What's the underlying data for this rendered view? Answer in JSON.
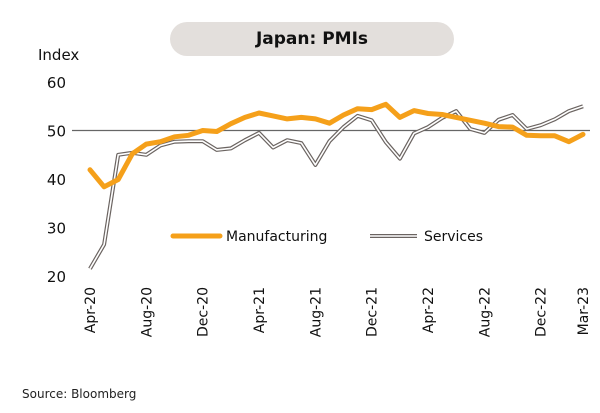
{
  "chart_data": {
    "type": "line",
    "title": "Japan: PMIs",
    "ylabel": "Index",
    "ylim": [
      20,
      60
    ],
    "yticks": [
      20,
      30,
      40,
      50,
      60
    ],
    "reference_line": 50,
    "x_tick_labels": [
      "Apr-20",
      "Aug-20",
      "Dec-20",
      "Apr-21",
      "Aug-21",
      "Dec-21",
      "Apr-22",
      "Aug-22",
      "Dec-22",
      "Mar-23"
    ],
    "x_tick_index": [
      0,
      4,
      8,
      12,
      16,
      20,
      24,
      28,
      32,
      35
    ],
    "series": [
      {
        "name": "Manufacturing",
        "color": "#f5a01a",
        "values": [
          41.9,
          38.4,
          39.9,
          45.2,
          47.2,
          47.7,
          48.7,
          49.0,
          50.0,
          49.8,
          51.4,
          52.7,
          53.6,
          53.0,
          52.4,
          52.7,
          52.4,
          51.5,
          53.2,
          54.5,
          54.3,
          55.4,
          52.7,
          54.1,
          53.5,
          53.3,
          52.7,
          52.1,
          51.5,
          50.8,
          50.7,
          49.0,
          48.9,
          48.9,
          47.7,
          49.2
        ]
      },
      {
        "name": "Services",
        "color": "#6b6461",
        "values": [
          21.5,
          26.5,
          45.0,
          45.4,
          45.0,
          46.9,
          47.7,
          47.8,
          47.8,
          46.0,
          46.3,
          48.0,
          49.5,
          46.5,
          48.0,
          47.4,
          42.9,
          47.8,
          50.7,
          53.0,
          52.1,
          47.6,
          44.2,
          49.4,
          50.7,
          52.6,
          54.0,
          50.3,
          49.5,
          52.2,
          53.2,
          50.3,
          51.1,
          52.3,
          54.0,
          55.0
        ]
      }
    ],
    "legend_position": "inside-middle",
    "source": "Source: Bloomberg"
  }
}
